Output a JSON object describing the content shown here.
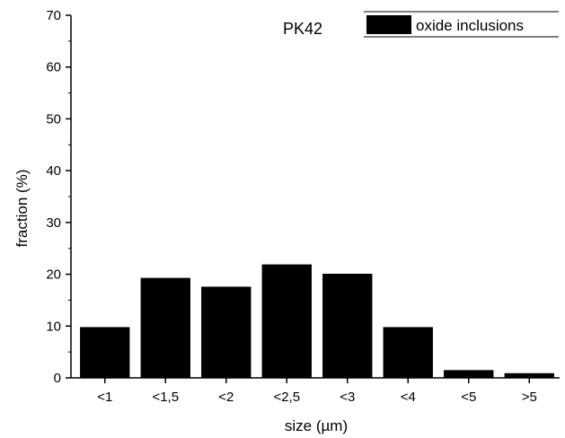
{
  "chart_data": {
    "type": "bar",
    "title": "PK42",
    "xlabel": "size (µm)",
    "ylabel": "fraction (%)",
    "ylim": [
      0,
      70
    ],
    "yticks": [
      "0",
      "10",
      "20",
      "30",
      "40",
      "50",
      "60",
      "70"
    ],
    "categories": [
      "<1",
      "<1,5",
      "<2",
      "<2,5",
      "<3",
      "<4",
      "<5",
      ">5"
    ],
    "series": [
      {
        "name": "oxide inclusions",
        "values": [
          9.8,
          19.3,
          17.6,
          21.9,
          20.1,
          9.8,
          1.5,
          0.9
        ],
        "color": "#000000"
      }
    ],
    "legend_position": "top-right",
    "grid": false
  }
}
